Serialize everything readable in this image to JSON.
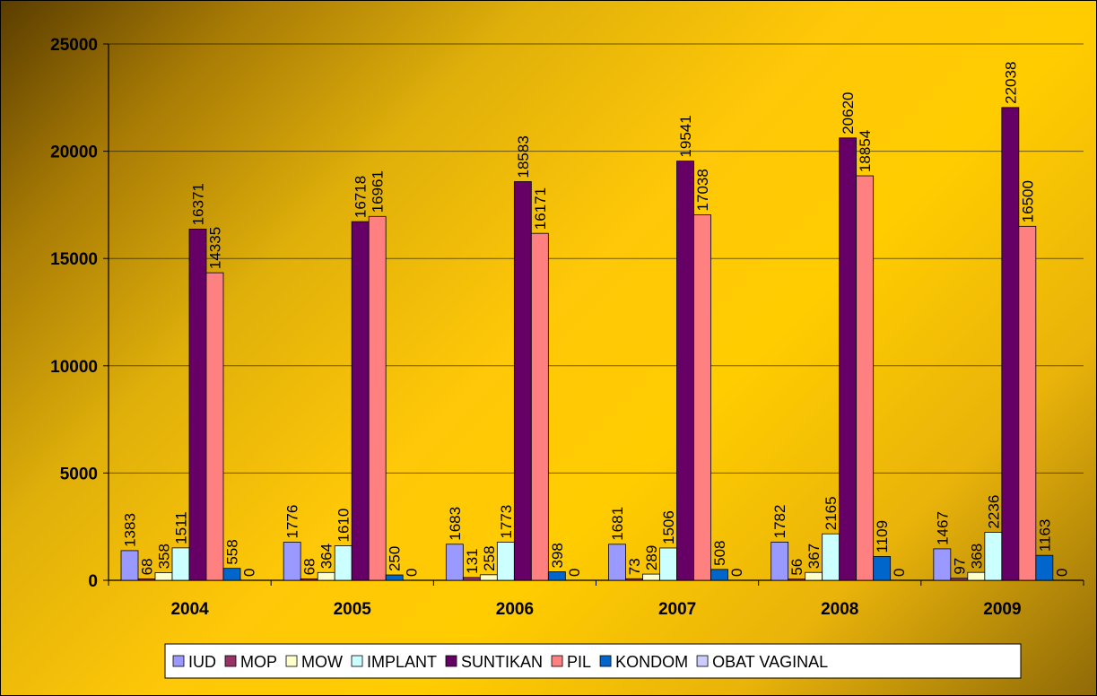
{
  "chart_data": {
    "type": "bar",
    "categories": [
      "2004",
      "2005",
      "2006",
      "2007",
      "2008",
      "2009"
    ],
    "ylim": [
      0,
      25000
    ],
    "yticks": [
      0,
      5000,
      10000,
      15000,
      20000,
      25000
    ],
    "grid": true,
    "legend_position": "bottom",
    "data_labels": true,
    "series": [
      {
        "name": "IUD",
        "color": "#9999FF",
        "values": [
          1383,
          1776,
          1683,
          1681,
          1782,
          1467
        ]
      },
      {
        "name": "MOP",
        "color": "#993366",
        "values": [
          68,
          68,
          131,
          73,
          56,
          97
        ]
      },
      {
        "name": "MOW",
        "color": "#FFFFCC",
        "values": [
          358,
          364,
          258,
          289,
          367,
          368
        ]
      },
      {
        "name": "IMPLANT",
        "color": "#CCFFFF",
        "values": [
          1511,
          1610,
          1773,
          1506,
          2165,
          2236
        ]
      },
      {
        "name": "SUNTIKAN",
        "color": "#660066",
        "values": [
          16371,
          16718,
          18583,
          19541,
          20620,
          22038
        ]
      },
      {
        "name": "PIL",
        "color": "#FF8080",
        "values": [
          14335,
          16961,
          16171,
          17038,
          18854,
          16500
        ]
      },
      {
        "name": "KONDOM",
        "color": "#0066CC",
        "values": [
          558,
          250,
          398,
          508,
          1109,
          1163
        ]
      },
      {
        "name": "OBAT VAGINAL",
        "color": "#CCCCFF",
        "values": [
          0,
          0,
          0,
          0,
          0,
          0
        ]
      }
    ]
  }
}
